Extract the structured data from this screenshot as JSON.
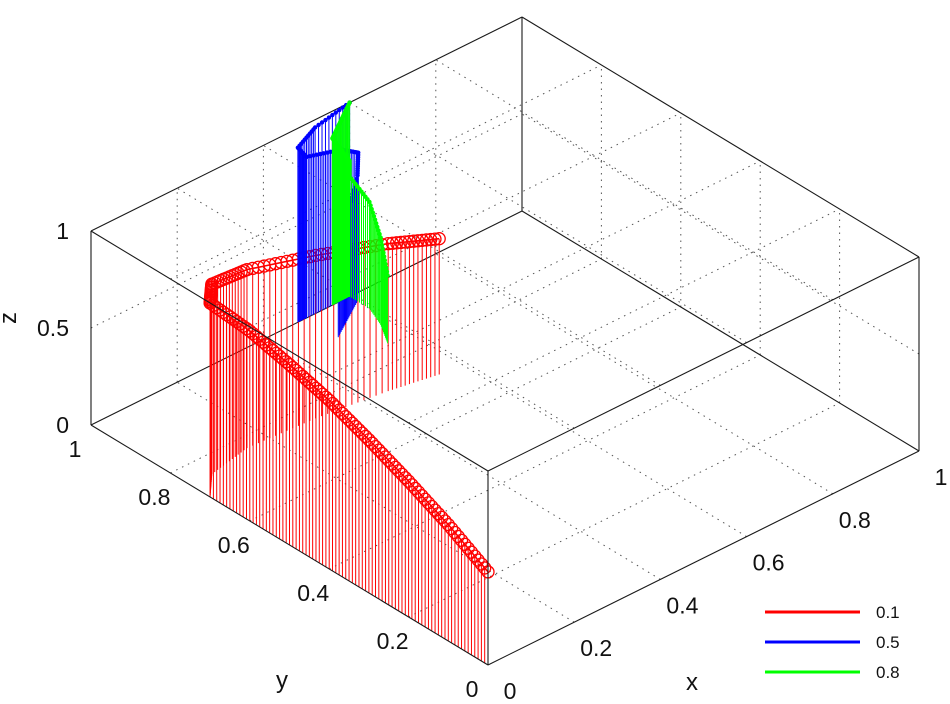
{
  "chart_data": {
    "type": "scatter",
    "subtype": "stem3",
    "xlabel": "x",
    "ylabel": "y",
    "zlabel": "z",
    "xlim": [
      0,
      1
    ],
    "ylim": [
      0,
      1
    ],
    "zlim": [
      0,
      1
    ],
    "x_ticks": [
      "0",
      "0.2",
      "0.4",
      "0.6",
      "0.8",
      "1"
    ],
    "y_ticks": [
      "0",
      "0.2",
      "0.4",
      "0.6",
      "0.8",
      "1"
    ],
    "z_ticks": [
      "0",
      "0.5",
      "1"
    ],
    "grid": true,
    "legend_position": "bottom-right",
    "series": [
      {
        "name": "0.1",
        "color": "#ff0000",
        "marker": "circle",
        "points": [
          {
            "x": 0.0,
            "y": 0.0,
            "z": 0.48
          },
          {
            "x": 0.0,
            "y": 0.1,
            "z": 0.6
          },
          {
            "x": 0.0,
            "y": 0.2,
            "z": 0.7
          },
          {
            "x": 0.0,
            "y": 0.3,
            "z": 0.79
          },
          {
            "x": 0.0,
            "y": 0.4,
            "z": 0.87
          },
          {
            "x": 0.0,
            "y": 0.5,
            "z": 0.93
          },
          {
            "x": 0.0,
            "y": 0.6,
            "z": 0.98
          },
          {
            "x": 0.0,
            "y": 0.7,
            "z": 1.0
          },
          {
            "x": 0.05,
            "y": 0.75,
            "z": 0.98
          },
          {
            "x": 0.15,
            "y": 0.77,
            "z": 0.92
          },
          {
            "x": 0.3,
            "y": 0.76,
            "z": 0.84
          },
          {
            "x": 0.45,
            "y": 0.74,
            "z": 0.76
          },
          {
            "x": 0.55,
            "y": 0.72,
            "z": 0.7
          }
        ]
      },
      {
        "name": "0.5",
        "color": "#0000ff",
        "marker": "dot",
        "points": [
          {
            "x": 0.5,
            "y": 0.92,
            "z": 0.45
          },
          {
            "x": 0.55,
            "y": 0.95,
            "z": 0.55
          },
          {
            "x": 0.6,
            "y": 0.98,
            "z": 0.65
          },
          {
            "x": 0.62,
            "y": 1.0,
            "z": 0.72
          },
          {
            "x": 0.58,
            "y": 1.0,
            "z": 0.78
          },
          {
            "x": 0.5,
            "y": 1.0,
            "z": 0.83
          },
          {
            "x": 0.48,
            "y": 1.0,
            "z": 0.9
          },
          {
            "x": 0.52,
            "y": 1.0,
            "z": 0.96
          },
          {
            "x": 0.6,
            "y": 1.0,
            "z": 1.0
          }
        ]
      },
      {
        "name": "0.8",
        "color": "#00ff00",
        "marker": "dot",
        "points": [
          {
            "x": 0.55,
            "y": 0.85,
            "z": 0.35
          },
          {
            "x": 0.58,
            "y": 0.9,
            "z": 0.45
          },
          {
            "x": 0.6,
            "y": 0.95,
            "z": 0.55
          },
          {
            "x": 0.6,
            "y": 1.0,
            "z": 0.62
          },
          {
            "x": 0.6,
            "y": 1.0,
            "z": 0.7
          },
          {
            "x": 0.58,
            "y": 1.0,
            "z": 0.78
          },
          {
            "x": 0.56,
            "y": 1.0,
            "z": 0.86
          },
          {
            "x": 0.58,
            "y": 1.0,
            "z": 0.93
          },
          {
            "x": 0.6,
            "y": 1.0,
            "z": 1.0
          }
        ]
      }
    ]
  }
}
